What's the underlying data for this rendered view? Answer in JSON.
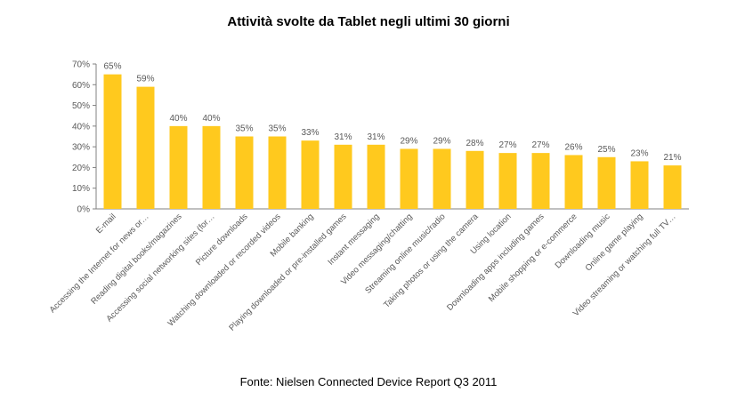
{
  "chart_data": {
    "type": "bar",
    "title": "Attività svolte da Tablet negli ultimi 30 giorni",
    "categories": [
      "E-mail",
      "Accessing the Internet for news or…",
      "Reading digital books/magazines",
      "Accessing social networking sites (for…",
      "Picture downloads",
      "Watching downloaded or recorded videos",
      "Mobile banking",
      "Playing downloaded or pre-installed games",
      "Instant messaging",
      "Video messaging/chatting",
      "Streaming online music/radio",
      "Taking photos or using the camera",
      "Using location",
      "Downloading apps including games",
      "Mobile shopping or e-commerce",
      "Downloading music",
      "Online game playing",
      "Video streaming or watching full TV…"
    ],
    "values": [
      65,
      59,
      40,
      40,
      35,
      35,
      33,
      31,
      31,
      29,
      29,
      28,
      27,
      27,
      26,
      25,
      23,
      21
    ],
    "data_labels": [
      "65%",
      "59%",
      "40%",
      "40%",
      "35%",
      "35%",
      "33%",
      "31%",
      "31%",
      "29%",
      "29%",
      "28%",
      "27%",
      "27%",
      "26%",
      "25%",
      "23%",
      "21%"
    ],
    "y_ticks": [
      "0%",
      "10%",
      "20%",
      "30%",
      "40%",
      "50%",
      "60%",
      "70%"
    ],
    "ylim": [
      0,
      70
    ],
    "xlabel": "",
    "ylabel": "",
    "grid": false,
    "legend": "none",
    "bar_color": "#FFC91E"
  },
  "source": "Fonte: Nielsen Connected Device Report Q3 2011"
}
